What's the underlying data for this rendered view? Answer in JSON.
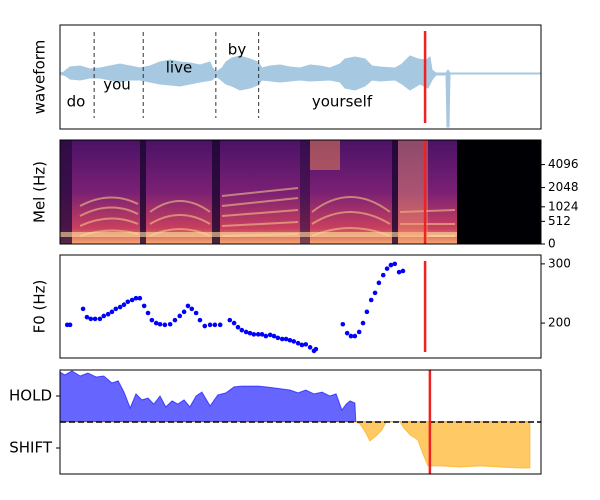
{
  "chart_data": [
    {
      "type": "waveform",
      "ylabel": "waveform",
      "xlim": [
        0,
        100
      ],
      "words": [
        "do",
        "you",
        "live",
        "by",
        "yourself"
      ],
      "word_boundaries": [
        7.1,
        17.3,
        32.4,
        41.3
      ],
      "marker_x": 75.9,
      "marker_color": "#ee2222"
    },
    {
      "type": "spectrogram",
      "ylabel": "Mel (Hz)",
      "xlim": [
        0,
        100
      ],
      "yscale": "mel",
      "ylim": [
        0,
        8000
      ],
      "yticks": [
        0,
        512,
        1024,
        2048,
        4096
      ],
      "marker_x": 75.9,
      "marker_color": "#ee2222"
    },
    {
      "type": "scatter",
      "ylabel": "F0 (Hz)",
      "xlim": [
        0,
        100
      ],
      "ylim": [
        141,
        315
      ],
      "yticks": [
        200,
        300
      ],
      "color": "#0000ff",
      "marker_x": 75.9,
      "marker_color": "#ee2222",
      "x": [
        1.5,
        2.1,
        4.8,
        5.6,
        6.4,
        7.3,
        8.3,
        9.1,
        10.0,
        10.8,
        11.6,
        12.5,
        13.3,
        14.1,
        15.0,
        15.8,
        16.6,
        17.5,
        18.3,
        19.1,
        20.0,
        20.8,
        21.8,
        22.9,
        23.9,
        24.9,
        25.8,
        26.6,
        27.4,
        28.3,
        29.1,
        30.1,
        31.2,
        32.2,
        33.3,
        35.3,
        36.2,
        37.0,
        37.8,
        38.7,
        39.5,
        40.3,
        41.2,
        42.0,
        42.8,
        43.7,
        44.5,
        45.3,
        46.2,
        47.0,
        47.8,
        48.6,
        49.5,
        50.3,
        51.1,
        52.0,
        52.8,
        53.2,
        58.8,
        59.7,
        60.5,
        61.3,
        62.2,
        63.0,
        63.8,
        64.7,
        65.5,
        66.3,
        67.2,
        68.0,
        68.8,
        69.6,
        70.5,
        71.3
      ],
      "values": [
        197,
        197,
        224,
        210,
        207,
        207,
        207,
        212,
        215,
        219,
        224,
        227,
        231,
        236,
        239,
        242,
        242,
        229,
        217,
        205,
        200,
        198,
        197,
        198,
        205,
        212,
        219,
        229,
        224,
        217,
        205,
        195,
        197,
        197,
        197,
        205,
        200,
        193,
        188,
        185,
        183,
        181,
        181,
        181,
        178,
        180,
        178,
        175,
        173,
        173,
        171,
        169,
        166,
        163,
        164,
        159,
        153,
        156,
        198,
        183,
        178,
        178,
        185,
        200,
        219,
        239,
        251,
        268,
        281,
        292,
        298,
        300,
        286,
        288
      ]
    },
    {
      "type": "area",
      "xlim": [
        0,
        100
      ],
      "ylim": [
        -2,
        2
      ],
      "yticks": [
        {
          "value": 1,
          "label": "HOLD"
        },
        {
          "value": -1,
          "label": "SHIFT"
        }
      ],
      "hline": 0,
      "pos_color": "#0000ff",
      "neg_color": "#ffa500",
      "marker_x": 76.9,
      "marker_color": "#ee2222",
      "x": [
        0,
        1.0,
        2.5,
        4.2,
        5.8,
        7.5,
        9.1,
        10.8,
        12.1,
        13.3,
        14.6,
        15.8,
        17.0,
        18.3,
        19.5,
        20.8,
        22.0,
        23.3,
        24.5,
        25.8,
        27.0,
        28.3,
        29.5,
        31.2,
        32.8,
        34.5,
        36.2,
        37.8,
        39.5,
        41.2,
        42.8,
        44.5,
        46.2,
        47.8,
        49.5,
        51.1,
        52.8,
        54.5,
        56.1,
        57.4,
        58.6,
        59.5,
        60.3,
        61.3,
        61.5,
        62.4,
        63.6,
        64.4,
        65.7,
        66.9,
        67.8,
        70.7,
        71.5,
        72.8,
        74.4,
        75.3,
        76.5,
        79.0,
        83.2,
        87.3,
        91.5,
        95.6,
        97.7
      ],
      "values": [
        1.92,
        1.81,
        1.96,
        1.77,
        1.88,
        1.73,
        1.77,
        1.5,
        1.58,
        1.15,
        0.54,
        1.08,
        0.85,
        0.92,
        0.69,
        1.0,
        0.58,
        0.81,
        0.69,
        0.85,
        0.58,
        1.0,
        1.15,
        0.62,
        1.04,
        1.12,
        1.35,
        1.38,
        1.38,
        1.38,
        1.35,
        1.31,
        1.27,
        1.23,
        1.12,
        1.23,
        1.08,
        1.15,
        1.0,
        1.08,
        0.46,
        0.69,
        0.81,
        0.73,
        0,
        -0.08,
        -0.42,
        -0.73,
        -0.54,
        -0.31,
        0,
        0,
        -0.23,
        -0.5,
        -0.69,
        -1.15,
        -1.69,
        -1.69,
        -1.73,
        -1.69,
        -1.73,
        -1.77,
        -1.77
      ]
    }
  ]
}
